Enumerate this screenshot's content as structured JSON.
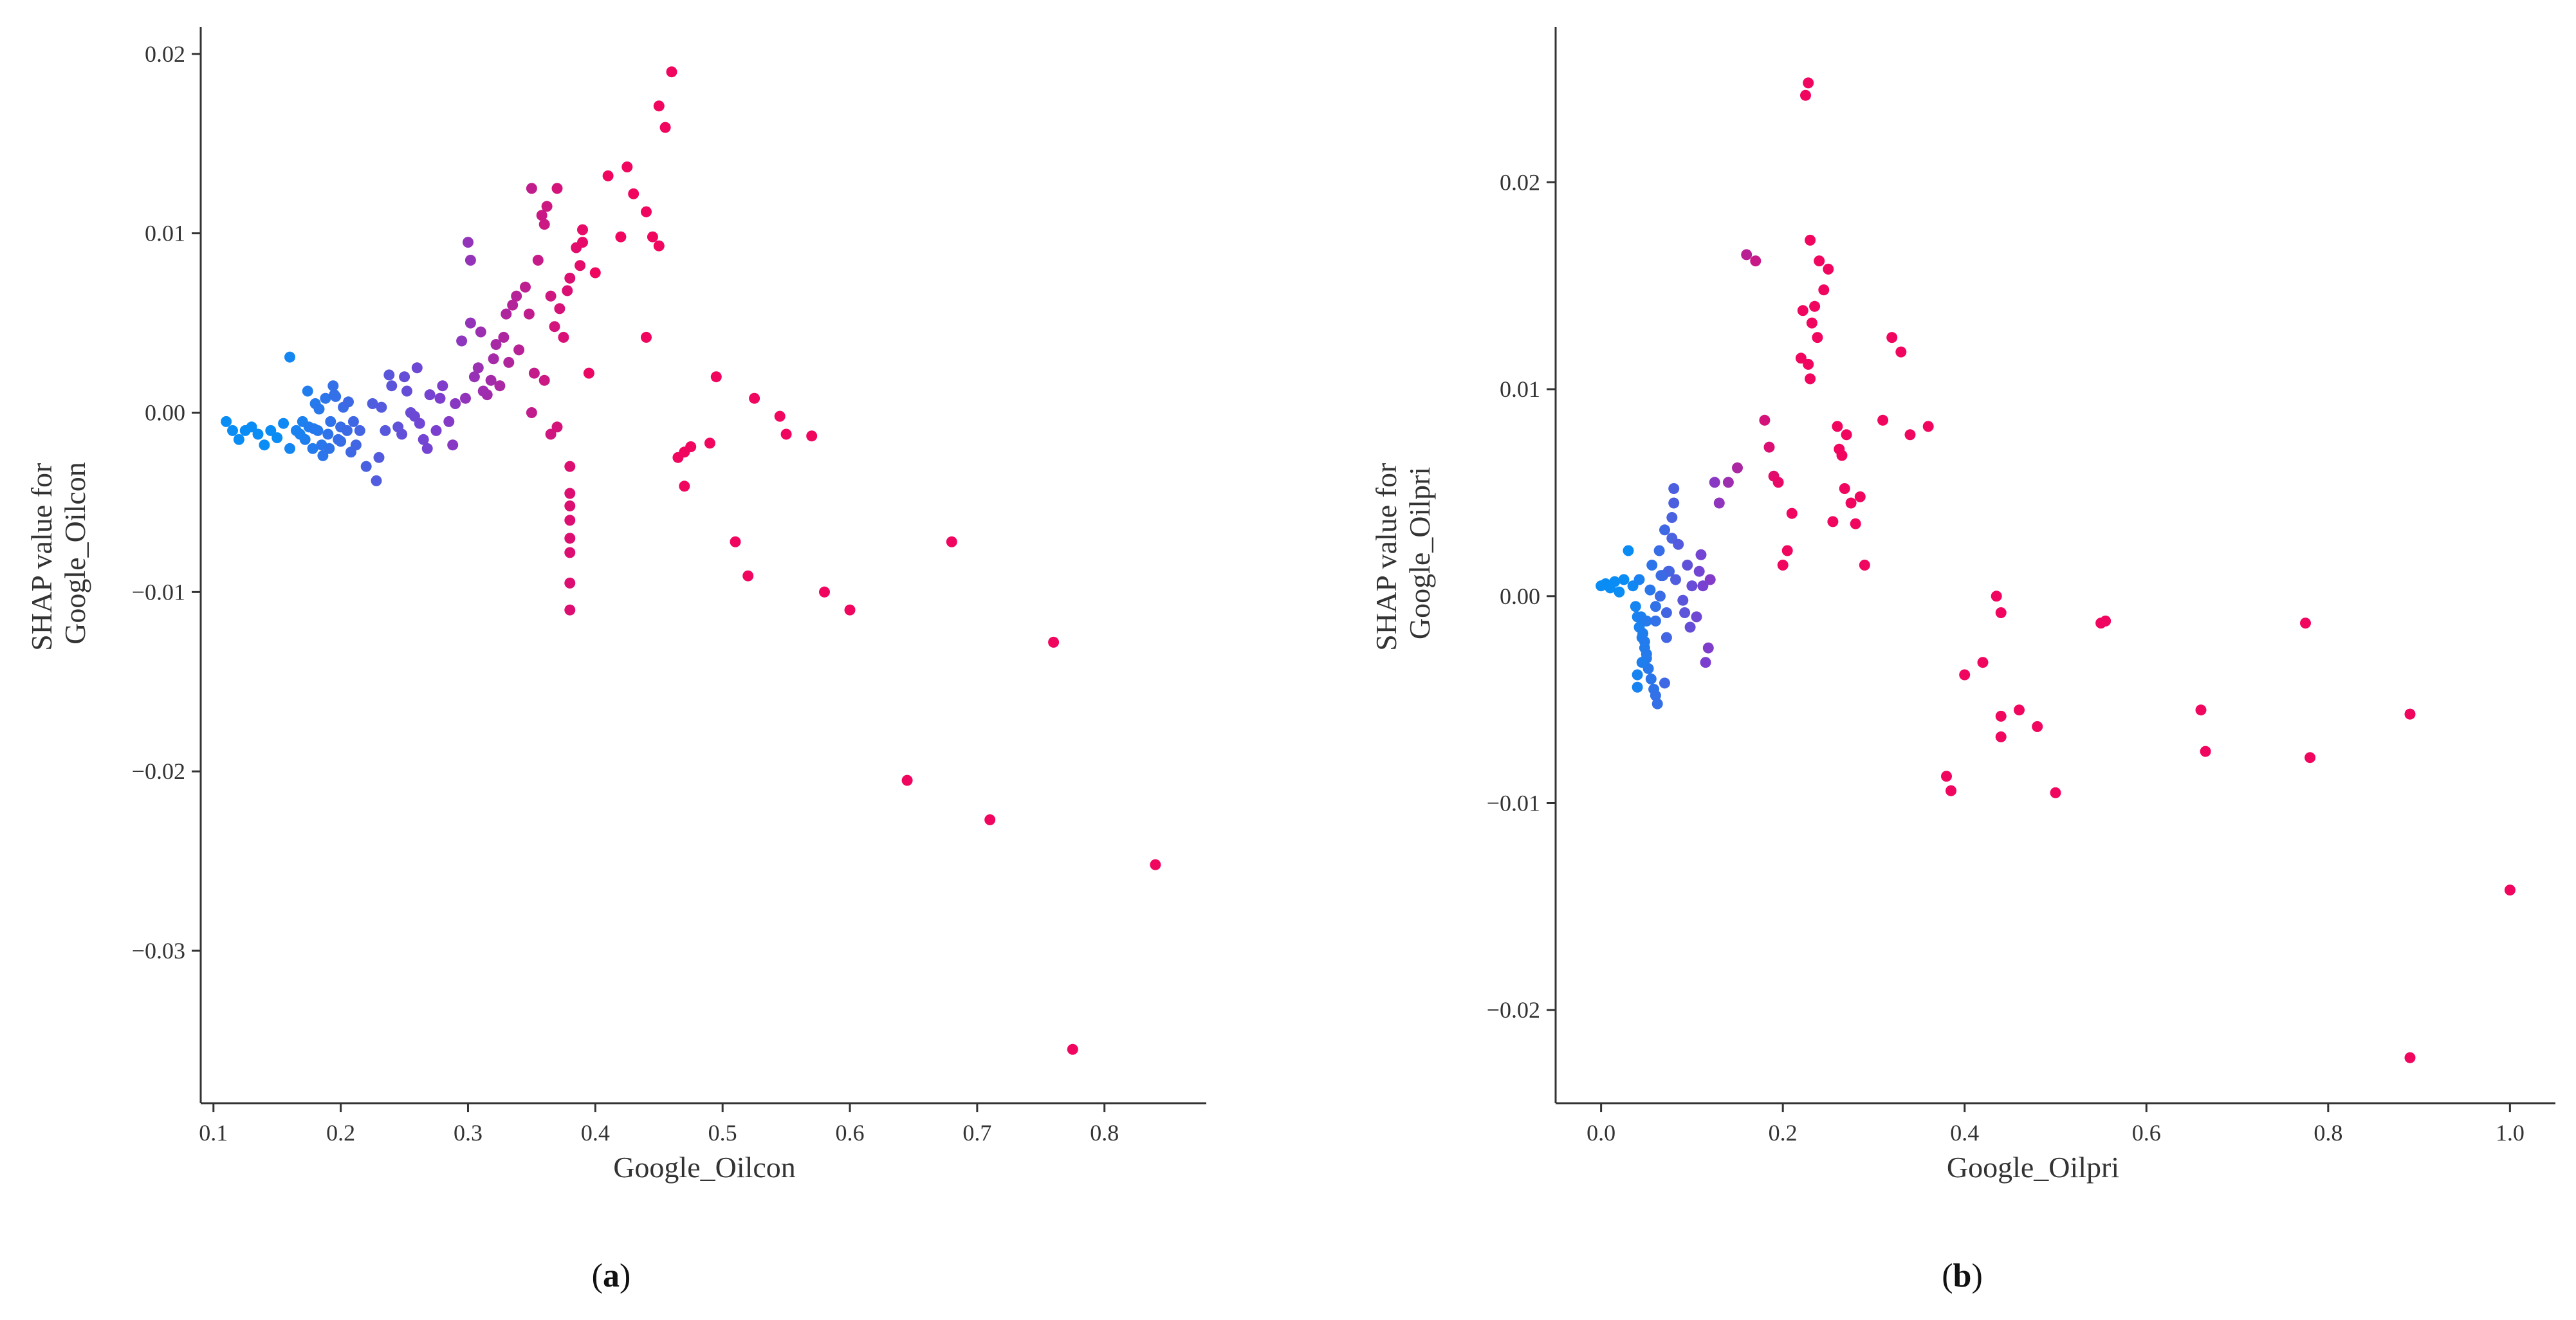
{
  "chart_data": [
    {
      "type": "scatter",
      "panel_label": "a",
      "title": "",
      "xlabel": "Google_Oilcon",
      "ylabel_lines": [
        "SHAP value for",
        "Google_Oilcon"
      ],
      "xlim": [
        0.09,
        0.88
      ],
      "ylim": [
        -0.0385,
        0.0215
      ],
      "xticks": [
        0.1,
        0.2,
        0.3,
        0.4,
        0.5,
        0.6,
        0.7,
        0.8
      ],
      "xtick_labels": [
        "0.1",
        "0.2",
        "0.3",
        "0.4",
        "0.5",
        "0.6",
        "0.7",
        "0.8"
      ],
      "yticks": [
        0.02,
        0.01,
        0.0,
        -0.01,
        -0.02,
        -0.03
      ],
      "ytick_labels": [
        "0.02",
        "0.01",
        "0.00",
        "−0.01",
        "−0.02",
        "−0.03"
      ],
      "color_range": [
        0.15,
        0.4
      ],
      "colors": {
        "low": "#0a8cf5",
        "mid": "#7b3fd0",
        "high": "#f0055f"
      },
      "x": [
        0.11,
        0.115,
        0.12,
        0.125,
        0.13,
        0.135,
        0.14,
        0.145,
        0.15,
        0.155,
        0.16,
        0.16,
        0.165,
        0.17,
        0.172,
        0.175,
        0.178,
        0.18,
        0.182,
        0.185,
        0.188,
        0.19,
        0.192,
        0.195,
        0.198,
        0.2,
        0.202,
        0.205,
        0.208,
        0.21,
        0.168,
        0.174,
        0.186,
        0.194,
        0.2,
        0.206,
        0.212,
        0.179,
        0.191,
        0.183,
        0.196,
        0.215,
        0.22,
        0.225,
        0.23,
        0.235,
        0.24,
        0.245,
        0.25,
        0.255,
        0.26,
        0.265,
        0.27,
        0.275,
        0.28,
        0.285,
        0.29,
        0.228,
        0.238,
        0.248,
        0.258,
        0.268,
        0.278,
        0.288,
        0.232,
        0.252,
        0.262,
        0.295,
        0.3,
        0.305,
        0.31,
        0.315,
        0.32,
        0.325,
        0.33,
        0.335,
        0.34,
        0.298,
        0.302,
        0.308,
        0.318,
        0.328,
        0.338,
        0.312,
        0.322,
        0.332,
        0.302,
        0.345,
        0.35,
        0.355,
        0.36,
        0.365,
        0.37,
        0.375,
        0.38,
        0.385,
        0.39,
        0.348,
        0.358,
        0.368,
        0.378,
        0.388,
        0.352,
        0.362,
        0.372,
        0.35,
        0.36,
        0.365,
        0.37,
        0.39,
        0.38,
        0.38,
        0.38,
        0.38,
        0.38,
        0.38,
        0.38,
        0.38,
        0.4,
        0.41,
        0.42,
        0.425,
        0.43,
        0.44,
        0.45,
        0.455,
        0.46,
        0.445,
        0.45,
        0.44,
        0.395,
        0.475,
        0.47,
        0.465,
        0.47,
        0.495,
        0.49,
        0.51,
        0.52,
        0.525,
        0.545,
        0.55,
        0.57,
        0.58,
        0.6,
        0.645,
        0.68,
        0.71,
        0.76,
        0.775,
        0.84
      ],
      "y": [
        -0.0005,
        -0.001,
        -0.0015,
        -0.001,
        -0.0008,
        -0.0012,
        -0.0018,
        -0.001,
        -0.0014,
        -0.0006,
        -0.002,
        0.0031,
        -0.001,
        -0.0005,
        -0.0015,
        -0.0008,
        -0.002,
        0.0005,
        -0.001,
        -0.0018,
        0.0008,
        -0.0012,
        -0.0005,
        0.001,
        -0.0015,
        -0.0008,
        0.0003,
        -0.001,
        -0.0022,
        -0.0005,
        -0.0012,
        0.0012,
        -0.0024,
        0.0015,
        -0.0016,
        0.0006,
        -0.0018,
        -0.0009,
        -0.002,
        0.0002,
        0.0009,
        -0.001,
        -0.003,
        0.0005,
        -0.0025,
        -0.001,
        0.0015,
        -0.0008,
        0.002,
        0.0,
        0.0025,
        -0.0015,
        0.001,
        -0.001,
        0.0015,
        -0.0005,
        0.0005,
        -0.0038,
        0.0021,
        -0.0012,
        -0.0002,
        -0.002,
        0.0008,
        -0.0018,
        0.0003,
        0.0012,
        -0.0006,
        0.004,
        0.0095,
        0.002,
        0.0045,
        0.001,
        0.003,
        0.0015,
        0.0055,
        0.006,
        0.0035,
        0.0008,
        0.0085,
        0.0025,
        0.0018,
        0.0042,
        0.0065,
        0.0012,
        0.0038,
        0.0028,
        0.005,
        0.007,
        0.0125,
        0.0085,
        0.0105,
        0.0065,
        0.0125,
        0.0042,
        0.0075,
        0.0092,
        0.0095,
        0.0055,
        0.011,
        0.0048,
        0.0068,
        0.0082,
        0.0022,
        0.0115,
        0.0058,
        0.0,
        0.0018,
        -0.0012,
        -0.0008,
        0.0102,
        -0.003,
        -0.0045,
        -0.0052,
        -0.006,
        -0.007,
        -0.0078,
        -0.0095,
        -0.011,
        0.0078,
        0.0132,
        0.0098,
        0.0137,
        0.0122,
        0.0112,
        0.0171,
        0.0159,
        0.019,
        0.0098,
        0.0093,
        0.0042,
        0.0022,
        -0.0019,
        -0.0022,
        -0.0025,
        -0.0041,
        0.002,
        -0.0017,
        -0.0072,
        -0.0091,
        0.0008,
        -0.0002,
        -0.0012,
        -0.0013,
        -0.01,
        -0.011,
        -0.0205,
        -0.0072,
        -0.0227,
        -0.0128,
        -0.0355,
        -0.0252
      ]
    },
    {
      "type": "scatter",
      "panel_label": "b",
      "title": "",
      "xlabel": "Google_Oilpri",
      "ylabel_lines": [
        "SHAP value for",
        "Google_Oilpri"
      ],
      "xlim": [
        -0.05,
        1.05
      ],
      "ylim": [
        -0.0245,
        0.0275
      ],
      "xticks": [
        0.0,
        0.2,
        0.4,
        0.6,
        0.8,
        1.0
      ],
      "xtick_labels": [
        "0.0",
        "0.2",
        "0.4",
        "0.6",
        "0.8",
        "1.0"
      ],
      "yticks": [
        0.02,
        0.01,
        0.0,
        -0.01,
        -0.02
      ],
      "ytick_labels": [
        "0.02",
        "0.01",
        "0.00",
        "−0.01",
        "−0.02"
      ],
      "color_range": [
        0.03,
        0.2
      ],
      "colors": {
        "low": "#0a8cf5",
        "mid": "#7b3fd0",
        "high": "#f0055f"
      },
      "x": [
        0.0,
        0.005,
        0.01,
        0.015,
        0.02,
        0.025,
        0.03,
        0.035,
        0.038,
        0.04,
        0.042,
        0.045,
        0.048,
        0.05,
        0.052,
        0.055,
        0.058,
        0.06,
        0.062,
        0.065,
        0.068,
        0.07,
        0.072,
        0.075,
        0.078,
        0.08,
        0.04,
        0.044,
        0.046,
        0.05,
        0.054,
        0.04,
        0.045,
        0.05,
        0.042,
        0.048,
        0.056,
        0.06,
        0.064,
        0.07,
        0.074,
        0.08,
        0.085,
        0.06,
        0.066,
        0.072,
        0.078,
        0.082,
        0.09,
        0.095,
        0.1,
        0.105,
        0.11,
        0.115,
        0.12,
        0.125,
        0.13,
        0.14,
        0.15,
        0.098,
        0.108,
        0.118,
        0.092,
        0.112,
        0.16,
        0.17,
        0.18,
        0.185,
        0.19,
        0.195,
        0.2,
        0.205,
        0.21,
        0.22,
        0.225,
        0.228,
        0.23,
        0.235,
        0.24,
        0.245,
        0.25,
        0.222,
        0.232,
        0.238,
        0.228,
        0.23,
        0.26,
        0.265,
        0.27,
        0.275,
        0.28,
        0.285,
        0.29,
        0.31,
        0.32,
        0.33,
        0.34,
        0.36,
        0.255,
        0.262,
        0.268,
        0.38,
        0.385,
        0.4,
        0.42,
        0.435,
        0.44,
        0.44,
        0.44,
        0.46,
        0.48,
        0.5,
        0.55,
        0.555,
        0.66,
        0.665,
        0.775,
        0.78,
        0.89,
        0.89,
        1.0
      ],
      "y": [
        0.0005,
        0.0006,
        0.0004,
        0.0007,
        0.0002,
        0.0008,
        0.0022,
        0.0005,
        -0.0005,
        -0.001,
        -0.0015,
        -0.002,
        -0.0025,
        -0.003,
        -0.0035,
        -0.004,
        -0.0045,
        -0.0048,
        -0.0052,
        0.0,
        0.001,
        -0.0042,
        -0.0008,
        0.0012,
        0.0028,
        0.0052,
        -0.0038,
        -0.001,
        -0.0018,
        -0.0028,
        0.0003,
        -0.0044,
        -0.0032,
        -0.0012,
        0.0008,
        -0.0022,
        0.0015,
        -0.0005,
        0.0022,
        0.0032,
        0.0012,
        0.0045,
        0.0025,
        -0.0012,
        0.001,
        -0.002,
        0.0038,
        0.0008,
        -0.0002,
        0.0015,
        0.0005,
        -0.001,
        0.002,
        -0.0032,
        0.0008,
        0.0055,
        0.0045,
        0.0055,
        0.0062,
        -0.0015,
        0.0012,
        -0.0025,
        -0.0008,
        0.0005,
        0.0165,
        0.0162,
        0.0085,
        0.0072,
        0.0058,
        0.0055,
        0.0015,
        0.0022,
        0.004,
        0.0115,
        0.0242,
        0.0248,
        0.0172,
        0.014,
        0.0162,
        0.0148,
        0.0158,
        0.0138,
        0.0132,
        0.0125,
        0.0112,
        0.0105,
        0.0082,
        0.0068,
        0.0078,
        0.0045,
        0.0035,
        0.0048,
        0.0015,
        0.0085,
        0.0125,
        0.0118,
        0.0078,
        0.0082,
        0.0036,
        0.0071,
        0.0052,
        -0.0087,
        -0.0094,
        -0.0038,
        -0.0032,
        0.0,
        -0.0008,
        -0.0058,
        -0.0068,
        -0.0055,
        -0.0063,
        -0.0095,
        -0.0013,
        -0.0012,
        -0.0055,
        -0.0075,
        -0.0013,
        -0.0078,
        -0.0057,
        -0.0223,
        -0.0142
      ]
    }
  ]
}
